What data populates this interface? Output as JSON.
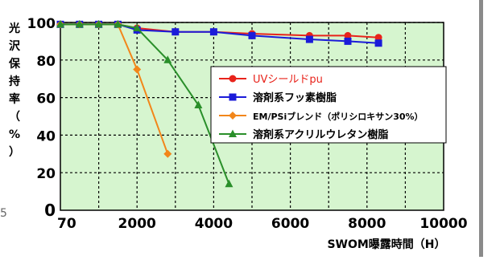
{
  "chart_data": {
    "type": "line",
    "xlabel": "SWOM曝露時間（H）",
    "ylabel": "光沢保持率（%）",
    "x_ticks": [
      "70",
      "2000",
      "4000",
      "6000",
      "8000",
      "10000"
    ],
    "y_ticks": [
      "0",
      "20",
      "40",
      "60",
      "80",
      "100"
    ],
    "xlim": [
      0,
      10000
    ],
    "ylim": [
      0,
      100
    ],
    "grid": true,
    "legend_position": "center-right",
    "colors": {
      "plot_bg": "#d6f5cf",
      "grid": "#000000",
      "series": [
        "#e8231b",
        "#1b1bd9",
        "#f2861a",
        "#2a8f2a"
      ]
    },
    "series": [
      {
        "name": "UVシールドpu",
        "marker": "circle",
        "x": [
          0,
          500,
          1000,
          1500,
          2000,
          3000,
          4000,
          5000,
          6500,
          7500,
          8300
        ],
        "y": [
          99,
          99,
          99,
          99,
          97,
          95,
          95,
          94,
          93,
          93,
          92
        ]
      },
      {
        "name": "溶剤系フッ素樹脂",
        "marker": "square",
        "x": [
          0,
          500,
          1000,
          1500,
          2000,
          3000,
          4000,
          5000,
          6500,
          7500,
          8300
        ],
        "y": [
          99,
          99,
          99,
          99,
          96,
          95,
          95,
          93,
          91,
          90,
          89
        ]
      },
      {
        "name": "EM/PSiブレンド（ポリシロキサン30%）",
        "marker": "diamond",
        "x": [
          0,
          500,
          1000,
          1500,
          2000,
          2800
        ],
        "y": [
          99,
          99,
          99,
          99,
          75,
          30
        ]
      },
      {
        "name": "溶剤系アクリルウレタン樹脂",
        "marker": "triangle",
        "x": [
          0,
          500,
          1000,
          1500,
          2000,
          2800,
          3600,
          4400
        ],
        "y": [
          99,
          99,
          99,
          99,
          97,
          80,
          56,
          14
        ]
      }
    ]
  },
  "page": {
    "edge_mark": "5"
  }
}
